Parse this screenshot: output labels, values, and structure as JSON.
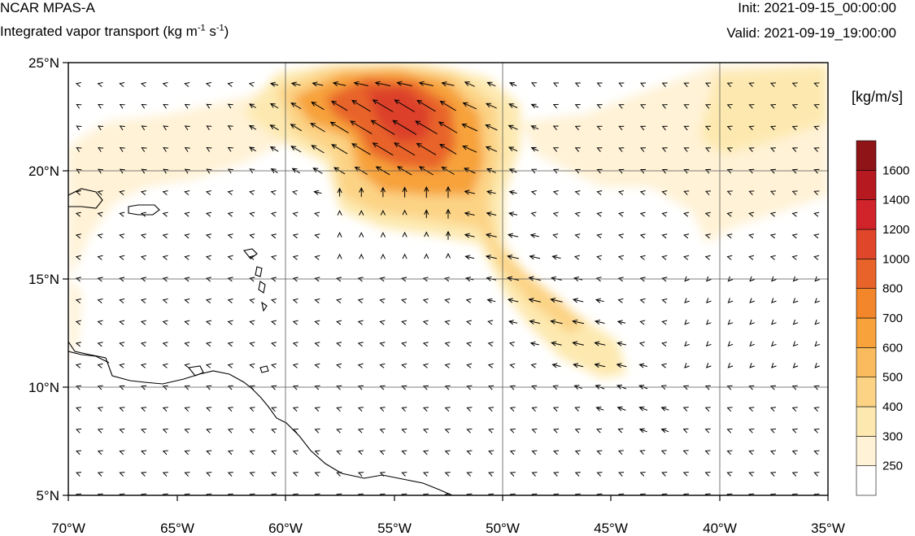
{
  "header": {
    "model": "NCAR MPAS-A",
    "field_prefix": "Integrated vapor transport (kg m",
    "field_exp1": "-1",
    "field_mid": " s",
    "field_exp2": "-1",
    "field_suffix": ")",
    "init": "Init: 2021-09-15_00:00:00",
    "valid": "Valid: 2021-09-19_19:00:00"
  },
  "map": {
    "lon_range": [
      -70,
      -35
    ],
    "lat_range": [
      5,
      25
    ],
    "lon_ticks": [
      {
        "value": -70,
        "label": "70°W"
      },
      {
        "value": -65,
        "label": "65°W"
      },
      {
        "value": -60,
        "label": "60°W"
      },
      {
        "value": -55,
        "label": "55°W"
      },
      {
        "value": -50,
        "label": "50°W"
      },
      {
        "value": -45,
        "label": "45°W"
      },
      {
        "value": -40,
        "label": "40°W"
      },
      {
        "value": -35,
        "label": "35°W"
      }
    ],
    "lat_ticks": [
      {
        "value": 25,
        "label": "25°N"
      },
      {
        "value": 20,
        "label": "20°N"
      },
      {
        "value": 15,
        "label": "15°N"
      },
      {
        "value": 10,
        "label": "10°N"
      },
      {
        "value": 5,
        "label": "5°N"
      }
    ],
    "gridlines_lon": [
      -60,
      -50,
      -40
    ],
    "gridlines_lat": [
      20,
      15,
      10
    ]
  },
  "colorbar": {
    "units": "[kg/m/s]",
    "levels": [
      "250",
      "300",
      "400",
      "500",
      "600",
      "700",
      "800",
      "1000",
      "1200",
      "1400",
      "1600"
    ],
    "colors": [
      "#ffffff",
      "#fff2d6",
      "#fde9b0",
      "#fcd385",
      "#f9bb5e",
      "#f7a23a",
      "#f3852a",
      "#e8632a",
      "#e0462a",
      "#d1232a",
      "#b71921",
      "#8e1418"
    ]
  }
}
